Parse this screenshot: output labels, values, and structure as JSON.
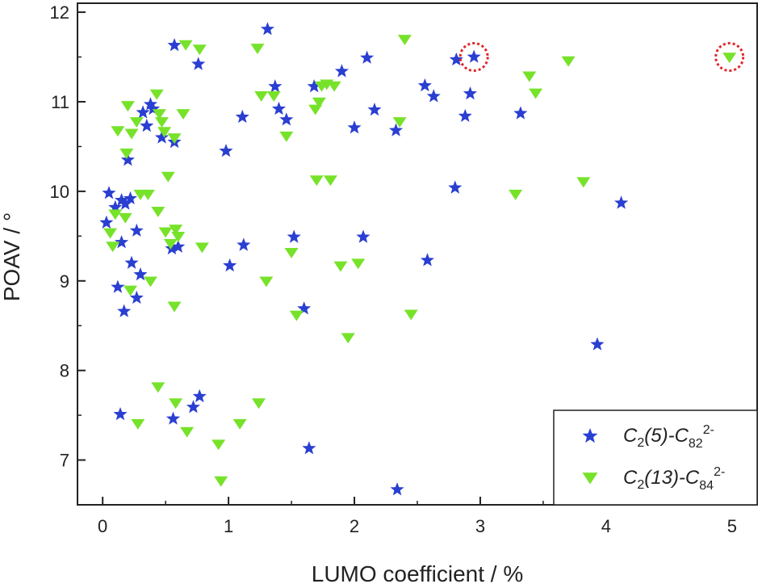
{
  "chart_data": {
    "type": "scatter",
    "title": "",
    "xlabel": "LUMO coefficient / %",
    "ylabel": "POAV / °",
    "xlim": [
      -0.2,
      5.2
    ],
    "ylim": [
      6.5,
      12.1
    ],
    "x_ticks": [
      "0",
      "1",
      "2",
      "3",
      "4",
      "5"
    ],
    "y_ticks": [
      "7",
      "8",
      "9",
      "10",
      "11",
      "12"
    ],
    "grid": false,
    "legend_position": "bottom-right",
    "series": [
      {
        "name": "C2(5)-C82 2-",
        "marker": "star",
        "color": "#2a3fd1",
        "points": [
          [
            0.05,
            9.98
          ],
          [
            0.03,
            9.65
          ],
          [
            0.1,
            9.82
          ],
          [
            0.15,
            9.9
          ],
          [
            0.18,
            9.86
          ],
          [
            0.22,
            9.92
          ],
          [
            0.2,
            10.35
          ],
          [
            0.15,
            9.43
          ],
          [
            0.23,
            9.2
          ],
          [
            0.12,
            8.93
          ],
          [
            0.3,
            9.07
          ],
          [
            0.27,
            8.81
          ],
          [
            0.27,
            9.56
          ],
          [
            0.17,
            8.66
          ],
          [
            0.32,
            10.88
          ],
          [
            0.35,
            10.73
          ],
          [
            0.4,
            10.92
          ],
          [
            0.38,
            10.97
          ],
          [
            0.47,
            10.6
          ],
          [
            0.57,
            10.55
          ],
          [
            0.55,
            9.36
          ],
          [
            0.6,
            9.38
          ],
          [
            0.57,
            11.63
          ],
          [
            0.76,
            11.42
          ],
          [
            0.14,
            7.51
          ],
          [
            0.56,
            7.46
          ],
          [
            0.72,
            7.59
          ],
          [
            0.77,
            7.71
          ],
          [
            0.98,
            10.45
          ],
          [
            1.01,
            9.17
          ],
          [
            1.11,
            10.83
          ],
          [
            1.12,
            9.4
          ],
          [
            1.31,
            11.81
          ],
          [
            1.37,
            11.17
          ],
          [
            1.4,
            10.92
          ],
          [
            1.46,
            10.8
          ],
          [
            1.52,
            9.49
          ],
          [
            1.6,
            8.69
          ],
          [
            1.64,
            7.13
          ],
          [
            1.68,
            11.17
          ],
          [
            1.9,
            11.34
          ],
          [
            2.0,
            10.71
          ],
          [
            2.07,
            9.49
          ],
          [
            2.1,
            11.49
          ],
          [
            2.16,
            10.91
          ],
          [
            2.33,
            10.68
          ],
          [
            2.34,
            6.67
          ],
          [
            2.56,
            11.18
          ],
          [
            2.58,
            9.23
          ],
          [
            2.63,
            11.06
          ],
          [
            2.8,
            10.04
          ],
          [
            2.81,
            11.47
          ],
          [
            2.88,
            10.84
          ],
          [
            2.92,
            11.09
          ],
          [
            2.95,
            11.5
          ],
          [
            3.32,
            10.87
          ],
          [
            3.93,
            8.29
          ],
          [
            4.12,
            9.87
          ]
        ]
      },
      {
        "name": "C2(13)-C84 2-",
        "marker": "triangle-down",
        "color": "#77e22a",
        "points": [
          [
            0.06,
            9.54
          ],
          [
            0.08,
            9.39
          ],
          [
            0.1,
            9.75
          ],
          [
            0.12,
            10.68
          ],
          [
            0.18,
            9.71
          ],
          [
            0.19,
            10.43
          ],
          [
            0.2,
            10.96
          ],
          [
            0.22,
            8.9
          ],
          [
            0.23,
            10.65
          ],
          [
            0.27,
            10.78
          ],
          [
            0.3,
            9.97
          ],
          [
            0.36,
            9.97
          ],
          [
            0.28,
            7.41
          ],
          [
            0.38,
            9.0
          ],
          [
            0.43,
            11.09
          ],
          [
            0.44,
            9.78
          ],
          [
            0.45,
            10.87
          ],
          [
            0.47,
            10.78
          ],
          [
            0.49,
            10.67
          ],
          [
            0.5,
            9.55
          ],
          [
            0.52,
            10.17
          ],
          [
            0.54,
            9.42
          ],
          [
            0.57,
            10.6
          ],
          [
            0.58,
            9.58
          ],
          [
            0.6,
            9.5
          ],
          [
            0.57,
            8.72
          ],
          [
            0.44,
            7.82
          ],
          [
            0.58,
            7.64
          ],
          [
            0.64,
            10.87
          ],
          [
            0.66,
            11.64
          ],
          [
            0.67,
            7.32
          ],
          [
            0.77,
            11.59
          ],
          [
            0.79,
            9.38
          ],
          [
            0.92,
            7.18
          ],
          [
            0.94,
            6.77
          ],
          [
            1.09,
            7.41
          ],
          [
            1.23,
            11.6
          ],
          [
            1.24,
            7.64
          ],
          [
            1.26,
            11.07
          ],
          [
            1.3,
            9.0
          ],
          [
            1.36,
            11.07
          ],
          [
            1.46,
            10.62
          ],
          [
            1.5,
            9.32
          ],
          [
            1.54,
            8.62
          ],
          [
            1.69,
            10.92
          ],
          [
            1.7,
            10.13
          ],
          [
            1.72,
            11.0
          ],
          [
            1.74,
            11.18
          ],
          [
            1.78,
            11.2
          ],
          [
            1.81,
            10.13
          ],
          [
            1.84,
            11.18
          ],
          [
            1.89,
            9.17
          ],
          [
            1.95,
            8.37
          ],
          [
            2.03,
            9.2
          ],
          [
            2.36,
            10.78
          ],
          [
            2.4,
            11.7
          ],
          [
            2.45,
            8.63
          ],
          [
            3.28,
            9.97
          ],
          [
            3.39,
            11.29
          ],
          [
            3.44,
            11.1
          ],
          [
            3.7,
            11.46
          ],
          [
            3.82,
            10.11
          ],
          [
            4.98,
            11.5
          ]
        ]
      }
    ],
    "highlighted_points": [
      {
        "series": "C2(5)-C82 2-",
        "x": 2.95,
        "y": 11.5
      },
      {
        "series": "C2(13)-C84 2-",
        "x": 4.98,
        "y": 11.5
      }
    ],
    "legend": [
      {
        "prefix": "C",
        "sub1": "2",
        "mid": "(5)-C",
        "sub2": "82",
        "sup": "2-"
      },
      {
        "prefix": "C",
        "sub1": "2",
        "mid": "(13)-C",
        "sub2": "84",
        "sup": "2-"
      }
    ]
  },
  "colors": {
    "star": "#2a3fd1",
    "triangle": "#77e22a",
    "highlight": "#e0262b",
    "axis": "#222222"
  }
}
